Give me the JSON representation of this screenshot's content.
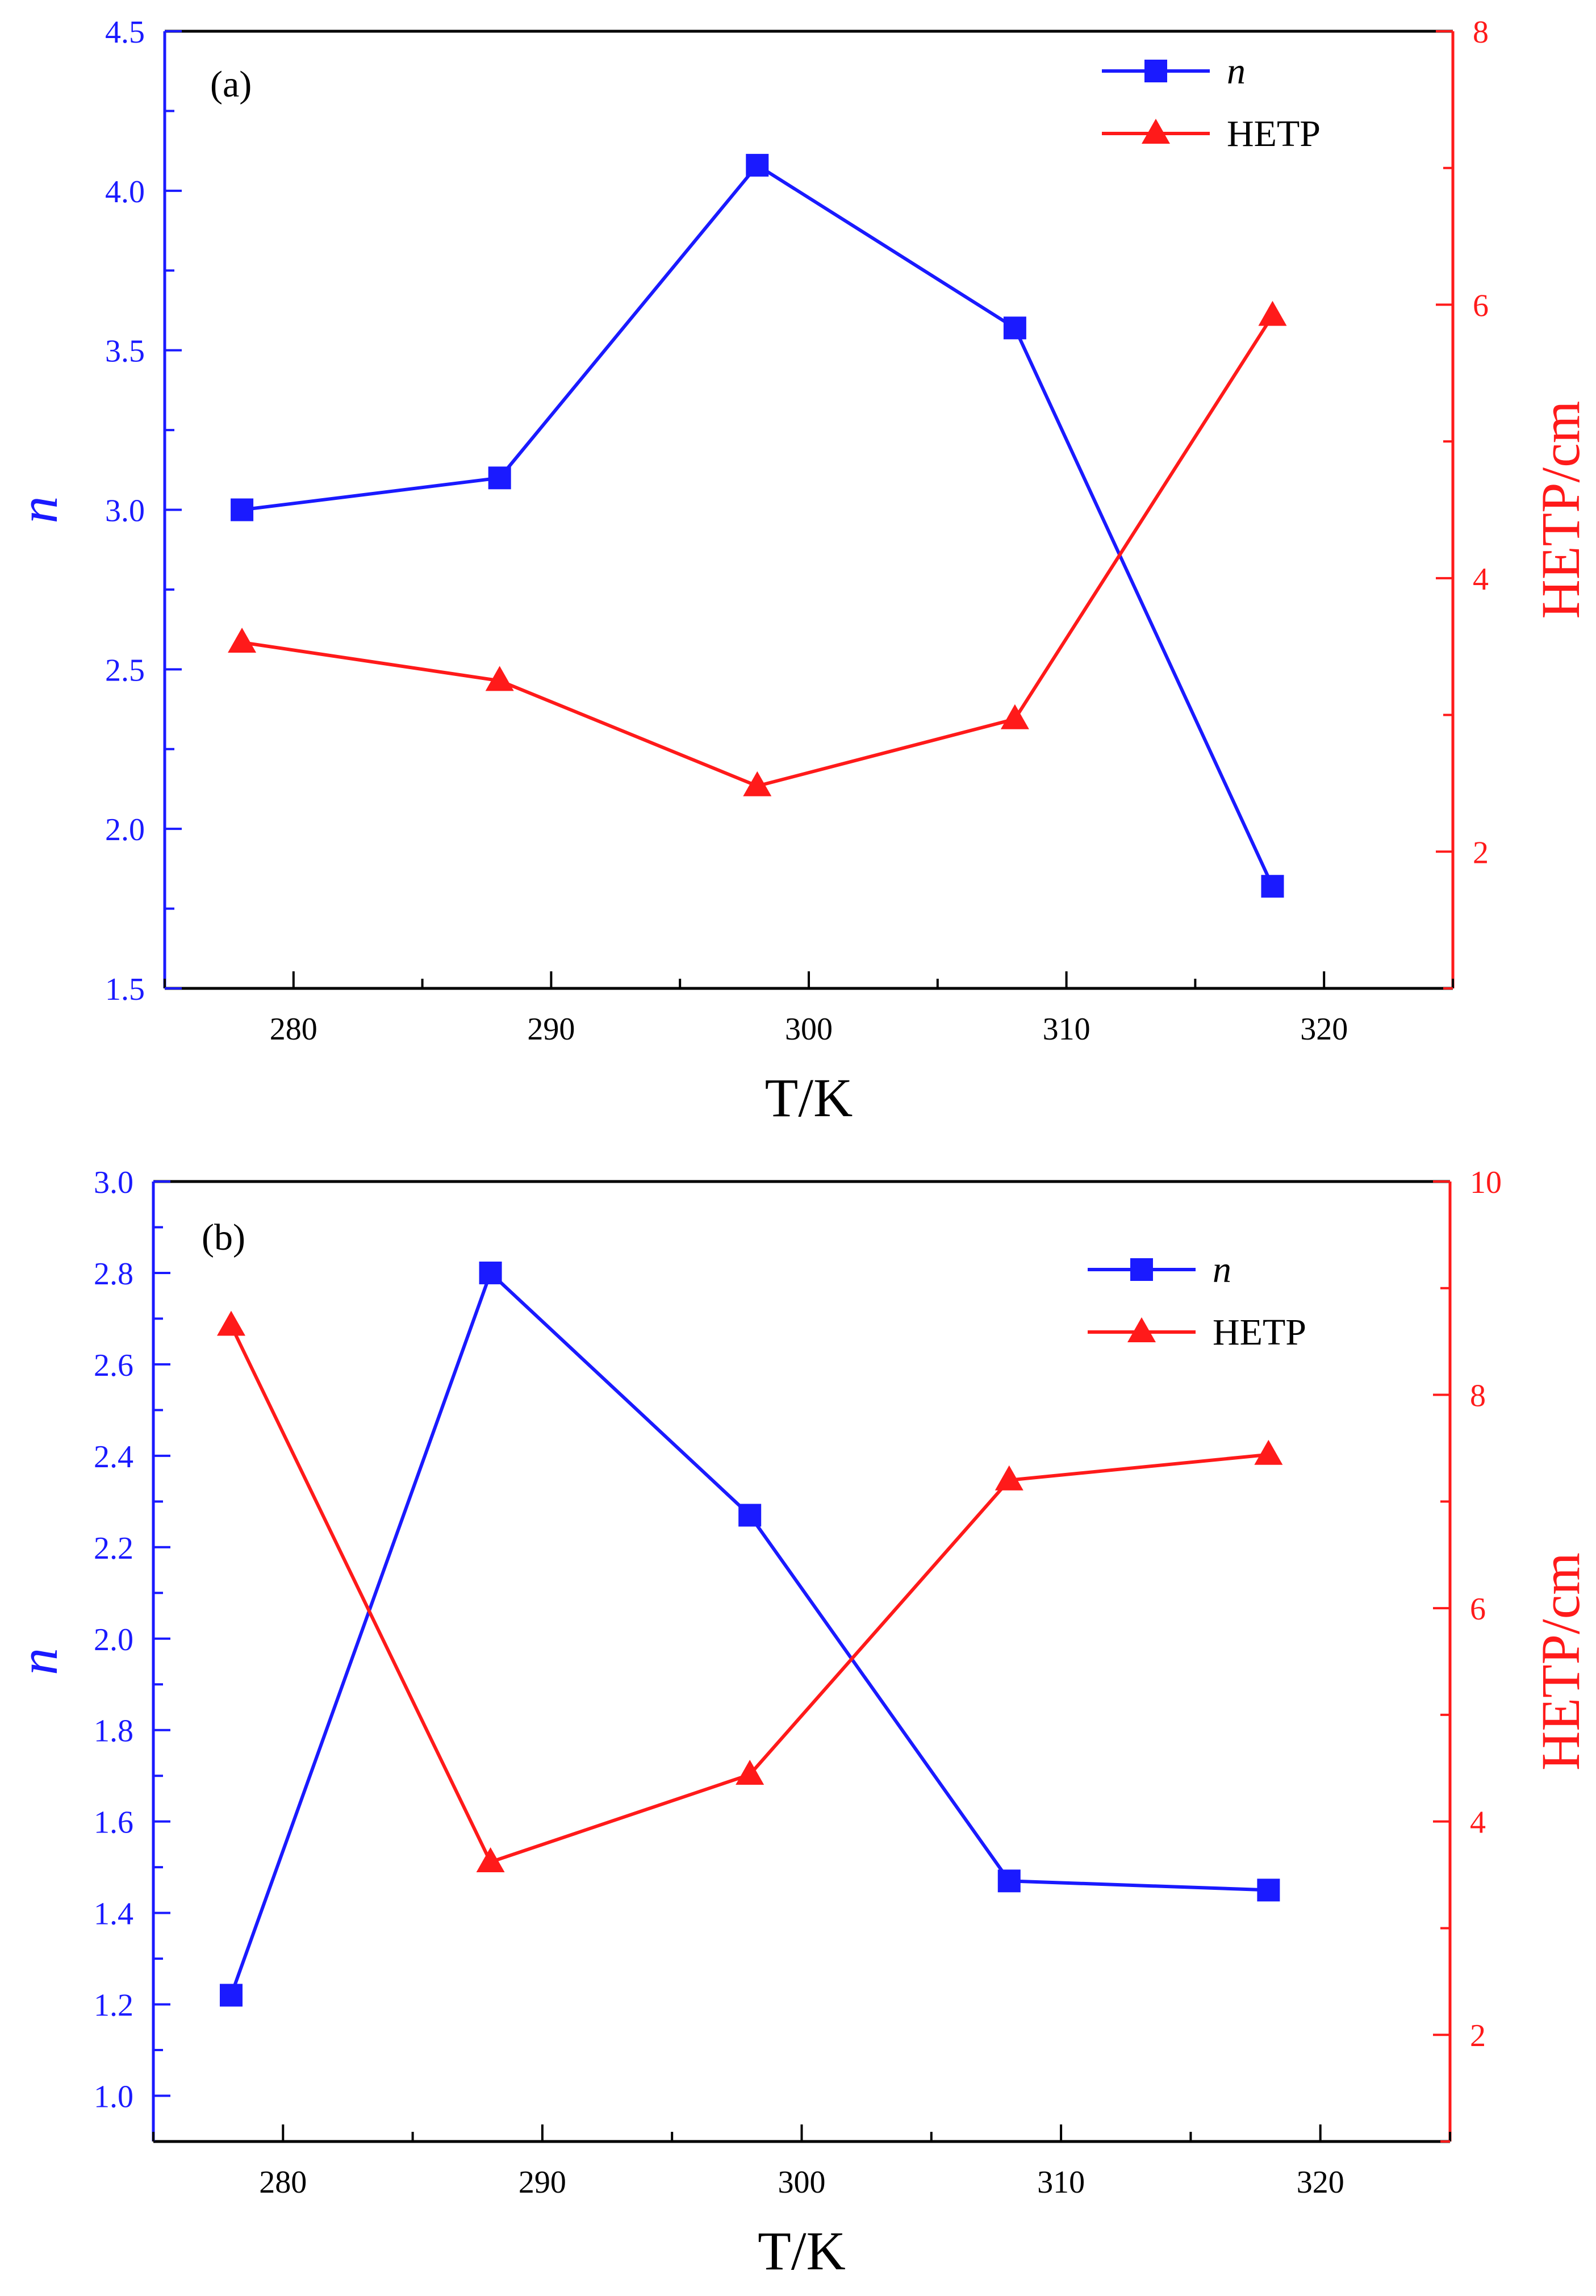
{
  "colors": {
    "n": "#1a1aff",
    "hetp": "#ff1a1a",
    "axis": "#000000"
  },
  "chart_data": [
    {
      "type": "line",
      "panel_label": "(a)",
      "xlabel": "T/K",
      "ylabel_left": "n",
      "ylabel_right": "HETP/cm",
      "xlim": [
        275,
        325
      ],
      "xticks": [
        280,
        290,
        300,
        310,
        320
      ],
      "ylim_left": [
        1.5,
        4.5
      ],
      "yticks_left": [
        "1.5",
        "2.0",
        "2.5",
        "3.0",
        "3.5",
        "4.0",
        "4.5"
      ],
      "ylim_right": [
        1,
        8
      ],
      "yticks_right": [
        "2",
        "4",
        "6",
        "8"
      ],
      "x": [
        278,
        288,
        298,
        308,
        318
      ],
      "series": [
        {
          "name": "n",
          "axis": "left",
          "marker": "square",
          "values": [
            3.0,
            3.1,
            4.08,
            3.57,
            1.82
          ]
        },
        {
          "name": "HETP",
          "axis": "right",
          "marker": "triangle",
          "values": [
            3.53,
            3.25,
            2.48,
            2.97,
            5.92
          ]
        }
      ],
      "legend": [
        "n",
        "HETP"
      ],
      "legend_position": "top-right"
    },
    {
      "type": "line",
      "panel_label": "(b)",
      "xlabel": "T/K",
      "ylabel_left": "n",
      "ylabel_right": "HETP/cm",
      "xlim": [
        275,
        325
      ],
      "xticks": [
        280,
        290,
        300,
        310,
        320
      ],
      "ylim_left": [
        0.9,
        3.0
      ],
      "yticks_left": [
        "1.0",
        "1.2",
        "1.4",
        "1.6",
        "1.8",
        "2.0",
        "2.2",
        "2.4",
        "2.6",
        "2.8",
        "3.0"
      ],
      "ylim_right": [
        1,
        10
      ],
      "yticks_right": [
        "2",
        "4",
        "6",
        "8",
        "10"
      ],
      "x": [
        278,
        288,
        298,
        308,
        318
      ],
      "series": [
        {
          "name": "n",
          "axis": "left",
          "marker": "square",
          "values": [
            1.22,
            2.8,
            2.27,
            1.47,
            1.45
          ]
        },
        {
          "name": "HETP",
          "axis": "right",
          "marker": "triangle",
          "values": [
            8.65,
            3.62,
            4.44,
            7.2,
            7.44
          ]
        }
      ],
      "legend": [
        "n",
        "HETP"
      ],
      "legend_position": "top-right"
    }
  ]
}
